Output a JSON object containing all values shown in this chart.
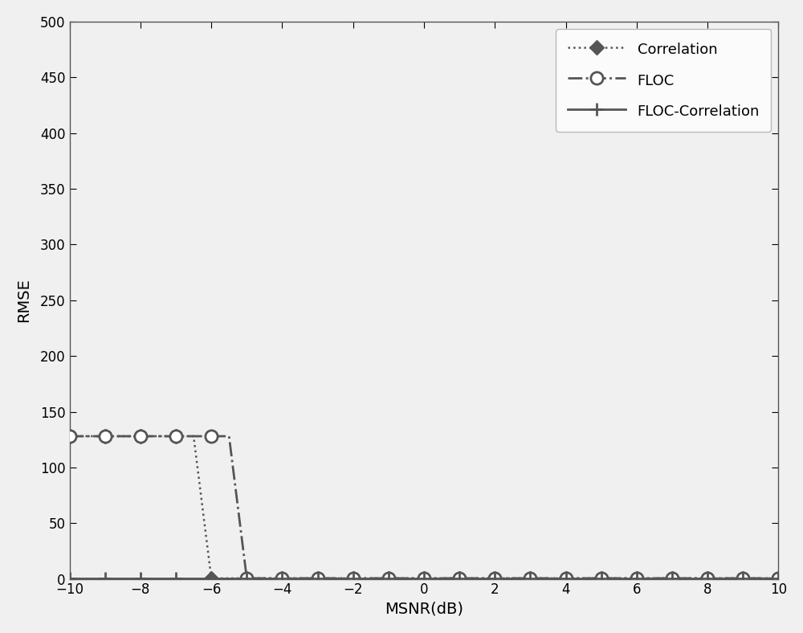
{
  "title": "",
  "xlabel": "MSNR(dB)",
  "ylabel": "RMSE",
  "xlim": [
    -10,
    10
  ],
  "ylim": [
    0,
    500
  ],
  "yticks": [
    0,
    50,
    100,
    150,
    200,
    250,
    300,
    350,
    400,
    450,
    500
  ],
  "xticks": [
    -10,
    -8,
    -6,
    -4,
    -2,
    0,
    2,
    4,
    6,
    8,
    10
  ],
  "x_values": [
    -10,
    -9,
    -8,
    -7,
    -6.5,
    -6,
    -5.5,
    -5,
    -4,
    -3,
    -2,
    -1,
    0,
    1,
    2,
    3,
    4,
    5,
    6,
    7,
    8,
    9,
    10
  ],
  "correlation_y": [
    128,
    128,
    128,
    128,
    128,
    0.5,
    0.5,
    0.5,
    0.5,
    0.5,
    0.5,
    0.5,
    0.5,
    0.5,
    0.5,
    0.5,
    0.5,
    0.5,
    0.5,
    0.5,
    0.5,
    0.5,
    0.5
  ],
  "floc_y": [
    128,
    128,
    128,
    128,
    128,
    128,
    128,
    0.5,
    0.5,
    0.5,
    0.5,
    0.5,
    0.5,
    0.5,
    0.5,
    0.5,
    0.5,
    0.5,
    0.5,
    0.5,
    0.5,
    0.5,
    0.5
  ],
  "floc_corr_y": [
    0.5,
    0.5,
    0.5,
    0.5,
    0.5,
    0.5,
    0.5,
    0.5,
    0.5,
    0.5,
    0.5,
    0.5,
    0.5,
    0.5,
    0.5,
    0.5,
    0.5,
    0.5,
    0.5,
    0.5,
    0.5,
    0.5,
    0.5
  ],
  "corr_marker_x": [
    -10,
    -9,
    -8,
    -7,
    -6,
    -5,
    -4,
    -3,
    -2,
    -1,
    0,
    1,
    2,
    3,
    4,
    5,
    6,
    7,
    8,
    9,
    10
  ],
  "corr_marker_y": [
    128,
    128,
    128,
    128,
    0.5,
    0.5,
    0.5,
    0.5,
    0.5,
    0.5,
    0.5,
    0.5,
    0.5,
    0.5,
    0.5,
    0.5,
    0.5,
    0.5,
    0.5,
    0.5,
    0.5
  ],
  "floc_marker_x": [
    -10,
    -9,
    -8,
    -7,
    -6,
    -5,
    -4,
    -3,
    -2,
    -1,
    0,
    1,
    2,
    3,
    4,
    5,
    6,
    7,
    8,
    9,
    10
  ],
  "floc_marker_y": [
    128,
    128,
    128,
    128,
    128,
    0.5,
    0.5,
    0.5,
    0.5,
    0.5,
    0.5,
    0.5,
    0.5,
    0.5,
    0.5,
    0.5,
    0.5,
    0.5,
    0.5,
    0.5,
    0.5
  ],
  "fc_marker_x": [
    -10,
    -9,
    -8,
    -7,
    -6,
    -5,
    -4,
    -3,
    -2,
    -1,
    0,
    1,
    2,
    3,
    4,
    5,
    6,
    7,
    8,
    9,
    10
  ],
  "fc_marker_y": [
    0.5,
    0.5,
    0.5,
    0.5,
    0.5,
    0.5,
    0.5,
    0.5,
    0.5,
    0.5,
    0.5,
    0.5,
    0.5,
    0.5,
    0.5,
    0.5,
    0.5,
    0.5,
    0.5,
    0.5,
    0.5
  ],
  "line_color": "#555555",
  "background": "#f0f0f0",
  "legend_loc": "upper right"
}
